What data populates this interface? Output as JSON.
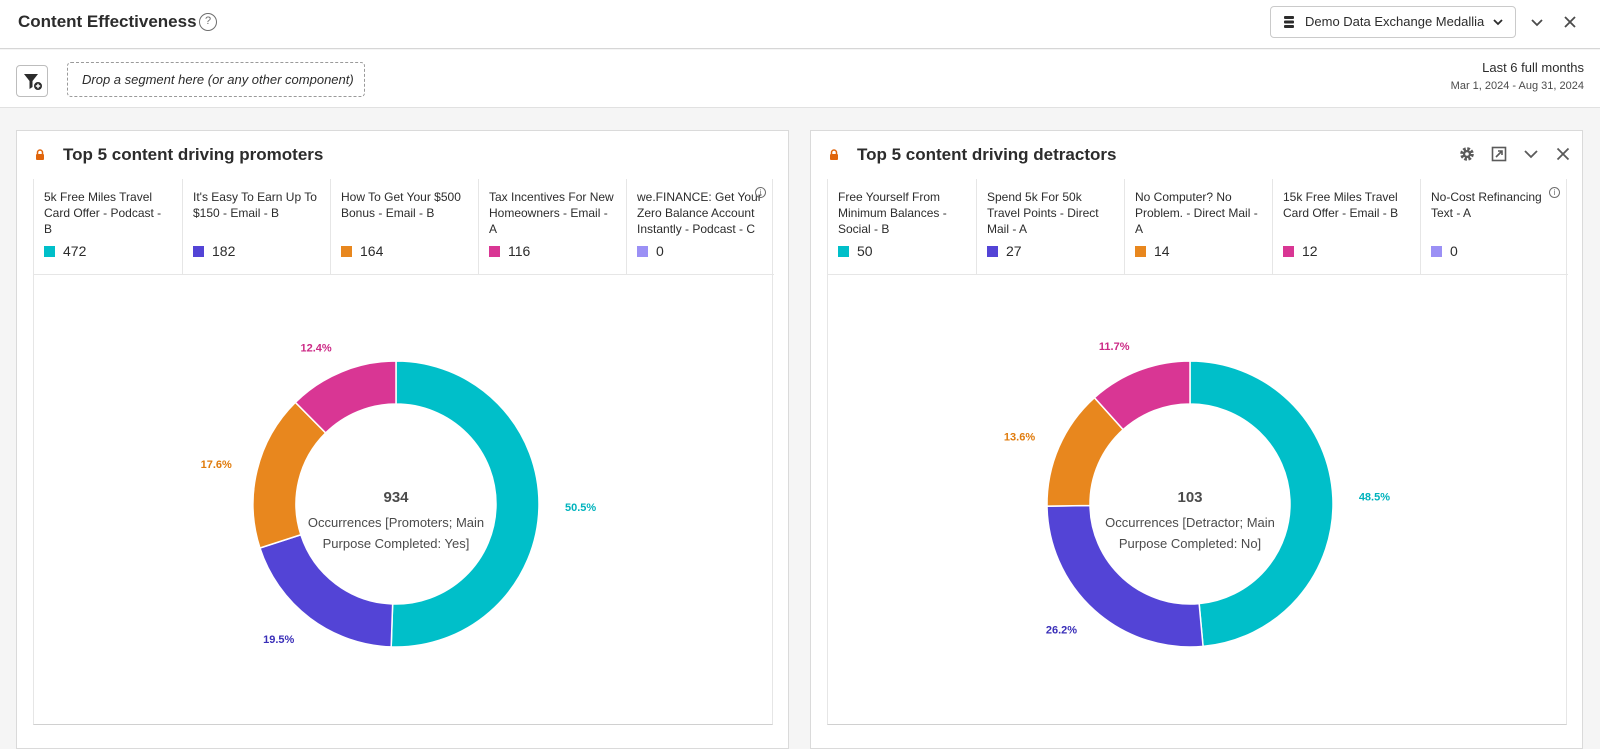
{
  "header": {
    "title": "Content Effectiveness",
    "help_glyph": "?",
    "data_view": "Demo Data Exchange Medallia"
  },
  "segment_bar": {
    "drop_placeholder": "Drop a segment here (or any other component)",
    "date_label": "Last 6 full months",
    "date_range": "Mar 1, 2024 - Aug 31, 2024"
  },
  "colors": {
    "teal": "#00bfc9",
    "indigo": "#5344d6",
    "orange": "#e8871e",
    "magenta": "#d93694",
    "lavender": "#9b90f5"
  },
  "panels": [
    {
      "title": "Top 5 content driving promoters",
      "legend": [
        {
          "label": "5k Free Miles Travel Card Offer - Podcast - B",
          "value": "472",
          "color": "#00bfc9"
        },
        {
          "label": "It's Easy To Earn Up To $150 - Email - B",
          "value": "182",
          "color": "#5344d6"
        },
        {
          "label": "How To Get Your $500 Bonus - Email - B",
          "value": "164",
          "color": "#e8871e"
        },
        {
          "label": "Tax Incentives For New Homeowners - Email - A",
          "value": "116",
          "color": "#d93694"
        },
        {
          "label": "we.FINANCE: Get Your Zero Balance Account Instantly - Podcast - C",
          "value": "0",
          "color": "#9b90f5"
        }
      ]
    },
    {
      "title": "Top 5 content driving detractors",
      "legend": [
        {
          "label": "Free Yourself From Minimum Balances - Social - B",
          "value": "50",
          "color": "#00bfc9"
        },
        {
          "label": "Spend 5k For 50k Travel Points - Direct Mail - A",
          "value": "27",
          "color": "#5344d6"
        },
        {
          "label": "No Computer? No Problem. - Direct Mail - A",
          "value": "14",
          "color": "#e8871e"
        },
        {
          "label": "15k Free Miles Travel Card Offer - Email - B",
          "value": "12",
          "color": "#d93694"
        },
        {
          "label": "No-Cost Refinancing Text - A",
          "value": "0",
          "color": "#9b90f5"
        }
      ]
    }
  ],
  "chart_data": [
    {
      "type": "pie",
      "donut": true,
      "center_value": "934",
      "center_label_1": "Occurrences [Promoters; Main",
      "center_label_2": "Purpose Completed: Yes]",
      "values": [
        472,
        182,
        164,
        116,
        0
      ],
      "percent_labels": [
        "50.5%",
        "19.5%",
        "17.6%",
        "12.4%",
        ""
      ],
      "colors": [
        "#00bfc9",
        "#5344d6",
        "#e8871e",
        "#d93694",
        "#9b90f5"
      ],
      "label_colors": [
        "#00b3bd",
        "#3a2fb8",
        "#e07b0c",
        "#cc2a86",
        "#9b90f5"
      ]
    },
    {
      "type": "pie",
      "donut": true,
      "center_value": "103",
      "center_label_1": "Occurrences [Detractor; Main",
      "center_label_2": "Purpose Completed: No]",
      "values": [
        50,
        27,
        14,
        12,
        0
      ],
      "percent_labels": [
        "48.5%",
        "26.2%",
        "13.6%",
        "11.7%",
        ""
      ],
      "colors": [
        "#00bfc9",
        "#5344d6",
        "#e8871e",
        "#d93694",
        "#9b90f5"
      ],
      "label_colors": [
        "#00b3bd",
        "#3a2fb8",
        "#e07b0c",
        "#cc2a86",
        "#9b90f5"
      ]
    }
  ]
}
